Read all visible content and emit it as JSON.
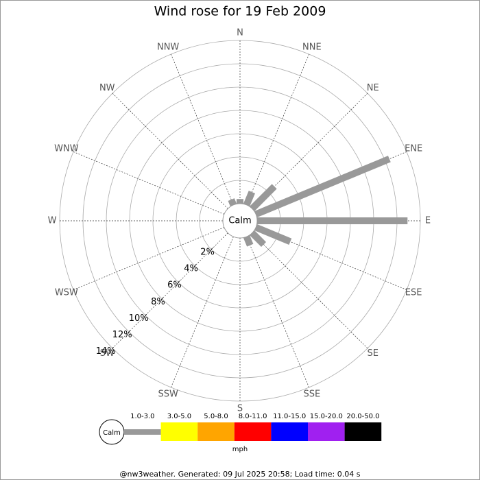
{
  "chart_data": {
    "type": "windrose",
    "title": "Wind rose for 19 Feb 2009",
    "categories": [
      "N",
      "NNE",
      "NE",
      "ENE",
      "E",
      "ESE",
      "SE",
      "SSE",
      "S",
      "SSW",
      "SW",
      "WSW",
      "W",
      "WNW",
      "NW",
      "NNW"
    ],
    "values": [
      0.4,
      1.2,
      2.7,
      12.4,
      12.9,
      3.2,
      1.4,
      0.8,
      0,
      0,
      0,
      0,
      0,
      0,
      0,
      0.5
    ],
    "color": "#999999",
    "rlim": [
      0,
      14
    ],
    "rticks": [
      {
        "value": 2,
        "label": "2%"
      },
      {
        "value": 4,
        "label": "4%"
      },
      {
        "value": 6,
        "label": "6%"
      },
      {
        "value": 8,
        "label": "8%"
      },
      {
        "value": 10,
        "label": "10%"
      },
      {
        "value": 12,
        "label": "12%"
      },
      {
        "value": 14,
        "label": "14%"
      }
    ],
    "calm_label": "Calm",
    "speed_bins": [
      {
        "label": "1.0-3.0",
        "color": "#999999"
      },
      {
        "label": "3.0-5.0",
        "color": "#ffff00"
      },
      {
        "label": "5.0-8.0",
        "color": "#ffa500"
      },
      {
        "label": "8.0-11.0",
        "color": "#ff0000"
      },
      {
        "label": "11.0-15.0",
        "color": "#0000ff"
      },
      {
        "label": "15.0-20.0",
        "color": "#a020f0"
      },
      {
        "label": "20.0-50.0",
        "color": "#000000"
      }
    ],
    "unit": "mph",
    "footer": "@nw3weather. Generated: 09 Jul 2025 20:58; Load time: 0.04 s"
  }
}
